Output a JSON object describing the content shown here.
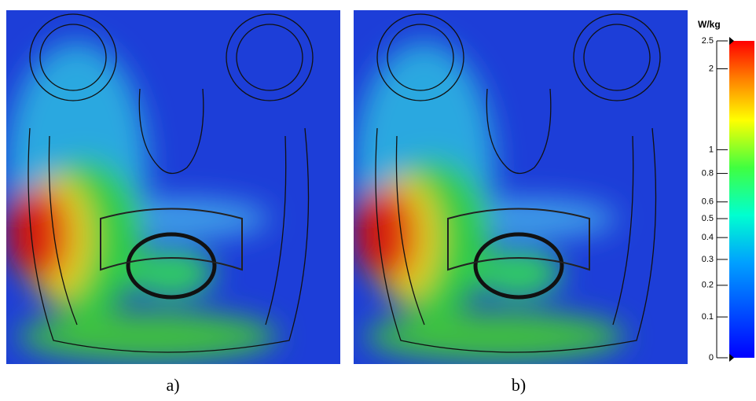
{
  "panels": [
    {
      "label": "a)"
    },
    {
      "label": "b)"
    }
  ],
  "colorbar": {
    "unit": "W/kg",
    "range": [
      0,
      2.5
    ],
    "ticks": [
      2.5,
      2,
      1,
      0.8,
      0.6,
      0.5,
      0.4,
      0.3,
      0.2,
      0.1,
      0
    ]
  }
}
